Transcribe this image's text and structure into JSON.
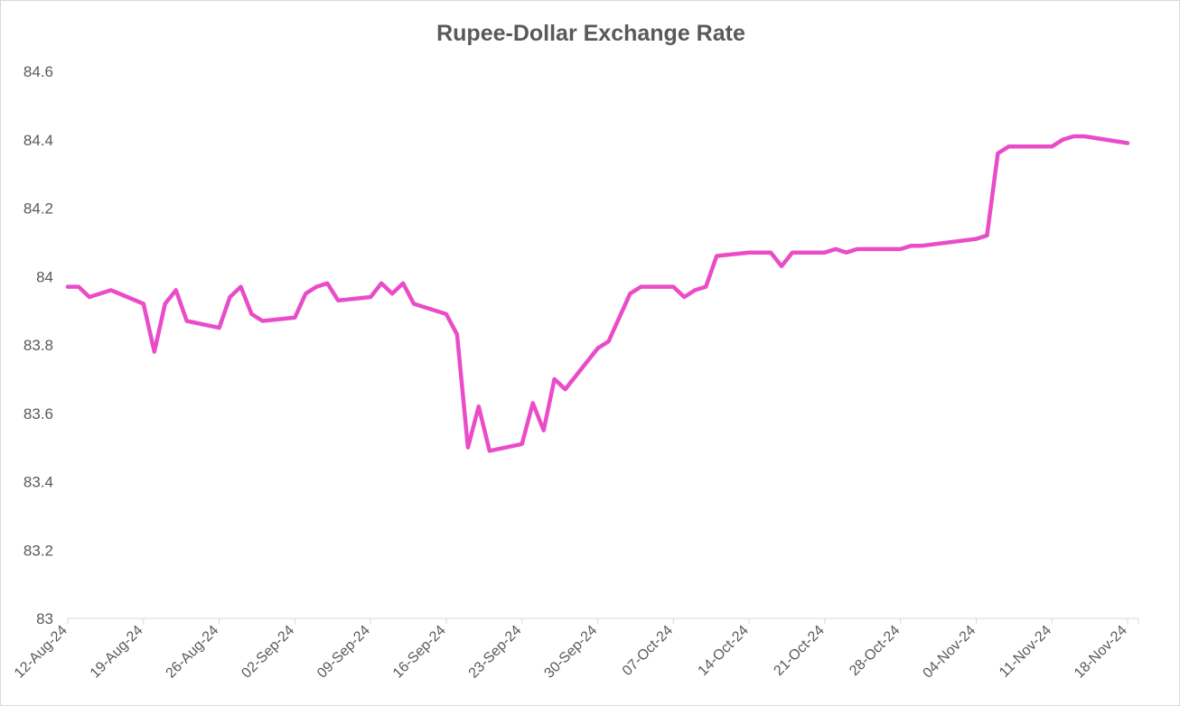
{
  "chart_data": {
    "type": "line",
    "title": "Rupee-Dollar Exchange Rate",
    "xlabel": "",
    "ylabel": "",
    "ylim": [
      83,
      84.6
    ],
    "yticks": [
      "83",
      "83.2",
      "83.4",
      "83.6",
      "83.8",
      "84",
      "84.2",
      "84.4",
      "84.6"
    ],
    "xlim": [
      "2024-08-12",
      "2024-11-19"
    ],
    "xtick_labels": [
      "12-Aug-24",
      "19-Aug-24",
      "26-Aug-24",
      "02-Sep-24",
      "09-Sep-24",
      "16-Sep-24",
      "23-Sep-24",
      "30-Sep-24",
      "07-Oct-24",
      "14-Oct-24",
      "21-Oct-24",
      "28-Oct-24",
      "04-Nov-24",
      "11-Nov-24",
      "18-Nov-24"
    ],
    "grid": false,
    "legend": "none",
    "line_color": "#ea4cc8",
    "x": [
      "2024-08-12",
      "2024-08-13",
      "2024-08-14",
      "2024-08-16",
      "2024-08-19",
      "2024-08-20",
      "2024-08-21",
      "2024-08-22",
      "2024-08-23",
      "2024-08-26",
      "2024-08-27",
      "2024-08-28",
      "2024-08-29",
      "2024-08-30",
      "2024-09-02",
      "2024-09-03",
      "2024-09-04",
      "2024-09-05",
      "2024-09-06",
      "2024-09-09",
      "2024-09-10",
      "2024-09-11",
      "2024-09-12",
      "2024-09-13",
      "2024-09-16",
      "2024-09-17",
      "2024-09-18",
      "2024-09-19",
      "2024-09-20",
      "2024-09-23",
      "2024-09-24",
      "2024-09-25",
      "2024-09-26",
      "2024-09-27",
      "2024-09-30",
      "2024-10-01",
      "2024-10-03",
      "2024-10-04",
      "2024-10-07",
      "2024-10-08",
      "2024-10-09",
      "2024-10-10",
      "2024-10-11",
      "2024-10-14",
      "2024-10-15",
      "2024-10-16",
      "2024-10-17",
      "2024-10-18",
      "2024-10-21",
      "2024-10-22",
      "2024-10-23",
      "2024-10-24",
      "2024-10-25",
      "2024-10-28",
      "2024-10-29",
      "2024-10-30",
      "2024-11-04",
      "2024-11-05",
      "2024-11-06",
      "2024-11-07",
      "2024-11-08",
      "2024-11-11",
      "2024-11-12",
      "2024-11-13",
      "2024-11-14",
      "2024-11-18"
    ],
    "series": [
      {
        "values": [
          83.97,
          83.97,
          83.94,
          83.96,
          83.92,
          83.78,
          83.92,
          83.96,
          83.87,
          83.85,
          83.94,
          83.97,
          83.89,
          83.87,
          83.88,
          83.95,
          83.97,
          83.98,
          83.93,
          83.94,
          83.98,
          83.95,
          83.98,
          83.92,
          83.89,
          83.83,
          83.5,
          83.62,
          83.49,
          83.51,
          83.63,
          83.55,
          83.7,
          83.67,
          83.79,
          83.81,
          83.95,
          83.97,
          83.97,
          83.94,
          83.96,
          83.97,
          84.06,
          84.07,
          84.07,
          84.07,
          84.03,
          84.07,
          84.07,
          84.08,
          84.07,
          84.08,
          84.08,
          84.08,
          84.09,
          84.09,
          84.11,
          84.12,
          84.36,
          84.38,
          84.38,
          84.38,
          84.4,
          84.41,
          84.41,
          84.39
        ]
      }
    ]
  }
}
